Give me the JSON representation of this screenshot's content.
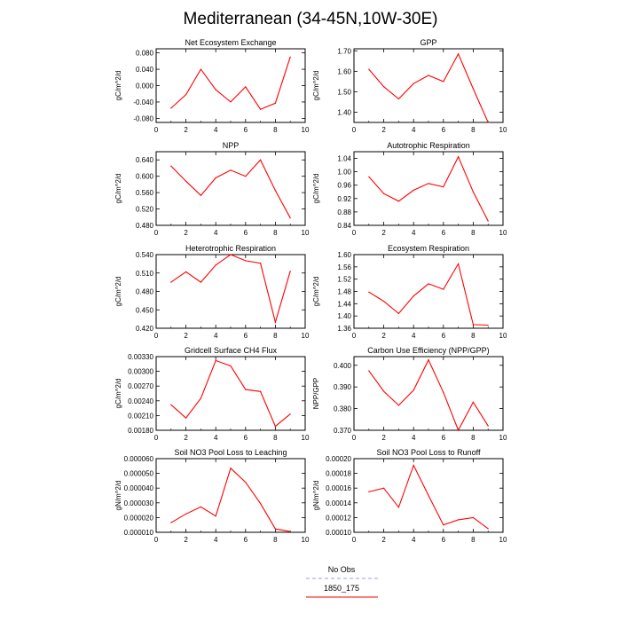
{
  "title": "Mediterranean (34-45N,10W-30E)",
  "legend": {
    "entries": [
      {
        "label": "No Obs",
        "color": "#9999ff",
        "dash": true
      },
      {
        "label": "1850_175",
        "color": "#ff0000",
        "dash": false
      }
    ]
  },
  "chart_data": [
    {
      "type": "line",
      "title": "Net Ecosystem Exchange",
      "ylabel": "gC/m^2/d",
      "xlim": [
        0,
        10
      ],
      "xticks": [
        0,
        2,
        4,
        6,
        8,
        10
      ],
      "ylim": [
        -0.09,
        0.09
      ],
      "yticks": [
        -0.08,
        -0.04,
        0.0,
        0.04,
        0.08
      ],
      "ytick_labels": [
        "-0.080",
        "-0.040",
        "0.000",
        "0.040",
        "0.080"
      ],
      "x": [
        1,
        2,
        3,
        4,
        5,
        6,
        7,
        8,
        9
      ],
      "series": [
        {
          "name": "1850_175",
          "color": "#ff0000",
          "values": [
            -0.055,
            -0.022,
            0.04,
            -0.01,
            -0.04,
            -0.003,
            -0.058,
            -0.043,
            0.07
          ]
        }
      ]
    },
    {
      "type": "line",
      "title": "GPP",
      "ylabel": "gC/m^2/d",
      "xlim": [
        0,
        10
      ],
      "xticks": [
        0,
        2,
        4,
        6,
        8,
        10
      ],
      "ylim": [
        1.35,
        1.71
      ],
      "yticks": [
        1.4,
        1.5,
        1.6,
        1.7
      ],
      "ytick_labels": [
        "1.40",
        "1.50",
        "1.60",
        "1.70"
      ],
      "x": [
        1,
        2,
        3,
        4,
        5,
        6,
        7,
        8,
        9
      ],
      "series": [
        {
          "name": "1850_175",
          "color": "#ff0000",
          "values": [
            1.61,
            1.525,
            1.465,
            1.54,
            1.58,
            1.55,
            1.685,
            1.515,
            1.35
          ]
        }
      ]
    },
    {
      "type": "line",
      "title": "NPP",
      "ylabel": "gC/m^2/d",
      "xlim": [
        0,
        10
      ],
      "xticks": [
        0,
        2,
        4,
        6,
        8,
        10
      ],
      "ylim": [
        0.48,
        0.66
      ],
      "yticks": [
        0.48,
        0.52,
        0.56,
        0.6,
        0.64
      ],
      "ytick_labels": [
        "0.480",
        "0.520",
        "0.560",
        "0.600",
        "0.640"
      ],
      "x": [
        1,
        2,
        3,
        4,
        5,
        6,
        7,
        8,
        9
      ],
      "series": [
        {
          "name": "1850_175",
          "color": "#ff0000",
          "values": [
            0.625,
            0.588,
            0.553,
            0.596,
            0.615,
            0.6,
            0.64,
            0.565,
            0.498
          ]
        }
      ]
    },
    {
      "type": "line",
      "title": "Autotrophic Respiration",
      "ylabel": "gC/m^2/d",
      "xlim": [
        0,
        10
      ],
      "xticks": [
        0,
        2,
        4,
        6,
        8,
        10
      ],
      "ylim": [
        0.84,
        1.06
      ],
      "yticks": [
        0.84,
        0.88,
        0.92,
        0.96,
        1.0,
        1.04
      ],
      "ytick_labels": [
        "0.84",
        "0.88",
        "0.92",
        "0.96",
        "1.00",
        "1.04"
      ],
      "x": [
        1,
        2,
        3,
        4,
        5,
        6,
        7,
        8,
        9
      ],
      "series": [
        {
          "name": "1850_175",
          "color": "#ff0000",
          "values": [
            0.985,
            0.935,
            0.912,
            0.945,
            0.965,
            0.955,
            1.045,
            0.94,
            0.853
          ]
        }
      ]
    },
    {
      "type": "line",
      "title": "Heterotrophic Respiration",
      "ylabel": "gC/m^2/d",
      "xlim": [
        0,
        10
      ],
      "xticks": [
        0,
        2,
        4,
        6,
        8,
        10
      ],
      "ylim": [
        0.42,
        0.54
      ],
      "yticks": [
        0.42,
        0.45,
        0.48,
        0.51,
        0.54
      ],
      "ytick_labels": [
        "0.420",
        "0.450",
        "0.480",
        "0.510",
        "0.540"
      ],
      "x": [
        1,
        2,
        3,
        4,
        5,
        6,
        7,
        8,
        9
      ],
      "series": [
        {
          "name": "1850_175",
          "color": "#ff0000",
          "values": [
            0.495,
            0.512,
            0.495,
            0.523,
            0.54,
            0.53,
            0.526,
            0.43,
            0.513
          ]
        }
      ]
    },
    {
      "type": "line",
      "title": "Ecosystem Respiration",
      "ylabel": "gC/m^2/d",
      "xlim": [
        0,
        10
      ],
      "xticks": [
        0,
        2,
        4,
        6,
        8,
        10
      ],
      "ylim": [
        1.36,
        1.6
      ],
      "yticks": [
        1.36,
        1.4,
        1.44,
        1.48,
        1.52,
        1.56,
        1.6
      ],
      "ytick_labels": [
        "1.36",
        "1.40",
        "1.44",
        "1.48",
        "1.52",
        "1.56",
        "1.60"
      ],
      "x": [
        1,
        2,
        3,
        4,
        5,
        6,
        7,
        8,
        9
      ],
      "series": [
        {
          "name": "1850_175",
          "color": "#ff0000",
          "values": [
            1.478,
            1.448,
            1.408,
            1.465,
            1.505,
            1.487,
            1.57,
            1.372,
            1.37
          ]
        }
      ]
    },
    {
      "type": "line",
      "title": "Gridcell Surface CH4 Flux",
      "ylabel": "gC/m^2/d",
      "xlim": [
        0,
        10
      ],
      "xticks": [
        0,
        2,
        4,
        6,
        8,
        10
      ],
      "ylim": [
        0.0018,
        0.0033
      ],
      "yticks": [
        0.0018,
        0.0021,
        0.0024,
        0.0027,
        0.003,
        0.0033
      ],
      "ytick_labels": [
        "0.00180",
        "0.00210",
        "0.00240",
        "0.00270",
        "0.00300",
        "0.00330"
      ],
      "x": [
        1,
        2,
        3,
        4,
        5,
        6,
        7,
        8,
        9
      ],
      "series": [
        {
          "name": "1850_175",
          "color": "#ff0000",
          "values": [
            0.00232,
            0.00205,
            0.00245,
            0.00322,
            0.00311,
            0.00263,
            0.00259,
            0.00188,
            0.00213
          ]
        }
      ]
    },
    {
      "type": "line",
      "title": "Carbon Use Efficiency (NPP/GPP)",
      "ylabel": "NPP/GPP",
      "xlim": [
        0,
        10
      ],
      "xticks": [
        0,
        2,
        4,
        6,
        8,
        10
      ],
      "ylim": [
        0.37,
        0.404
      ],
      "yticks": [
        0.37,
        0.38,
        0.39,
        0.4
      ],
      "ytick_labels": [
        "0.370",
        "0.380",
        "0.390",
        "0.400"
      ],
      "x": [
        1,
        2,
        3,
        4,
        5,
        6,
        7,
        8,
        9
      ],
      "series": [
        {
          "name": "1850_175",
          "color": "#ff0000",
          "values": [
            0.3975,
            0.388,
            0.3815,
            0.3885,
            0.4025,
            0.3875,
            0.37,
            0.383,
            0.372
          ]
        }
      ]
    },
    {
      "type": "line",
      "title": "Soil NO3 Pool Loss to Leaching",
      "ylabel": "gN/m^2/d",
      "xlim": [
        0,
        10
      ],
      "xticks": [
        0,
        2,
        4,
        6,
        8,
        10
      ],
      "ylim": [
        1e-05,
        6e-05
      ],
      "yticks": [
        1e-05,
        2e-05,
        3e-05,
        4e-05,
        5e-05,
        6e-05
      ],
      "ytick_labels": [
        "0.000010",
        "0.000020",
        "0.000030",
        "0.000040",
        "0.000050",
        "0.000060"
      ],
      "x": [
        1,
        2,
        3,
        4,
        5,
        6,
        7,
        8,
        9
      ],
      "series": [
        {
          "name": "1850_175",
          "color": "#ff0000",
          "values": [
            1.65e-05,
            2.25e-05,
            2.72e-05,
            2.1e-05,
            5.35e-05,
            4.4e-05,
            2.95e-05,
            1.23e-05,
            1.05e-05
          ]
        }
      ]
    },
    {
      "type": "line",
      "title": "Soil NO3 Pool Loss to Runoff",
      "ylabel": "gN/m^2/d",
      "xlim": [
        0,
        10
      ],
      "xticks": [
        0,
        2,
        4,
        6,
        8,
        10
      ],
      "ylim": [
        0.0001,
        0.0002
      ],
      "yticks": [
        0.0001,
        0.00012,
        0.00014,
        0.00016,
        0.00018,
        0.0002
      ],
      "ytick_labels": [
        "0.00010",
        "0.00012",
        "0.00014",
        "0.00016",
        "0.00018",
        "0.00020"
      ],
      "x": [
        1,
        2,
        3,
        4,
        5,
        6,
        7,
        8,
        9
      ],
      "series": [
        {
          "name": "1850_175",
          "color": "#ff0000",
          "values": [
            0.000155,
            0.00016,
            0.000134,
            0.000191,
            0.00015,
            0.00011,
            0.000117,
            0.00012,
            0.000105
          ]
        }
      ]
    }
  ]
}
